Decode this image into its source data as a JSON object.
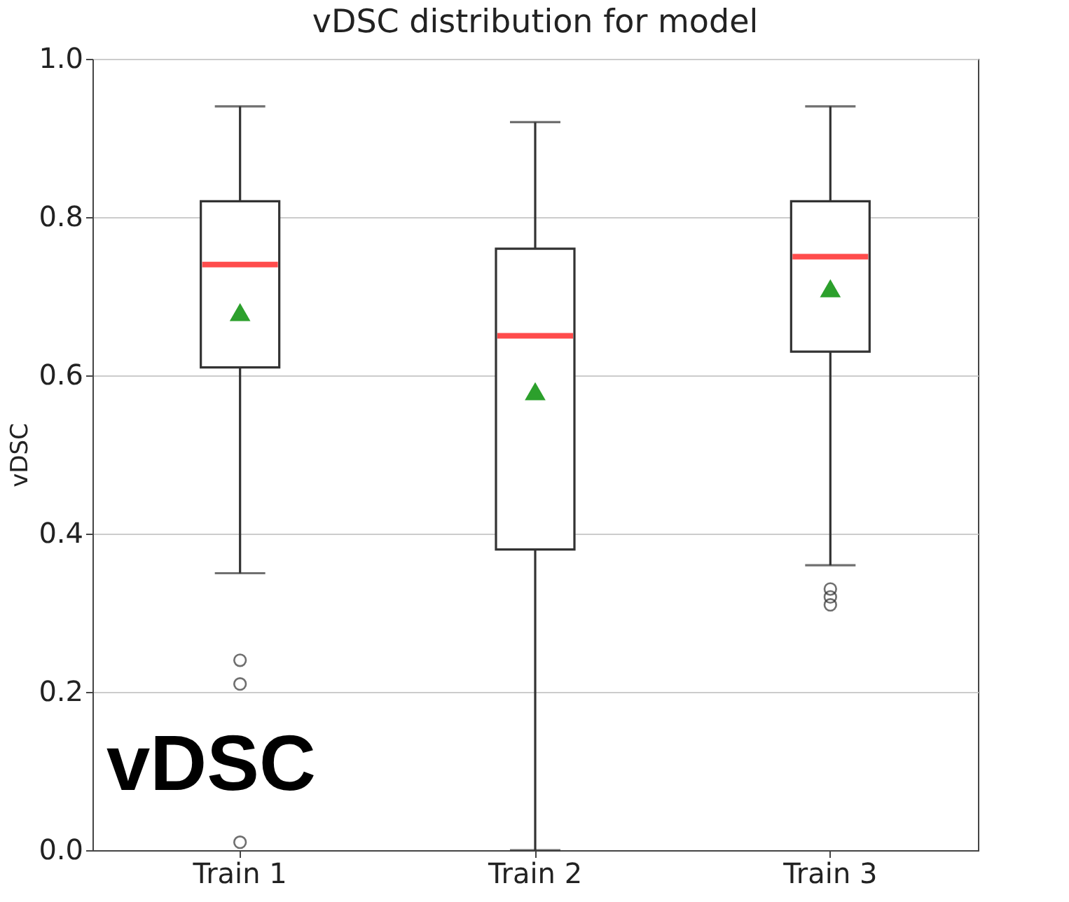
{
  "chart_data": {
    "type": "box",
    "title": "vDSC distribution for model",
    "ylabel": "vDSC",
    "categories": [
      "Train 1",
      "Train 2",
      "Train 3"
    ],
    "boxes": [
      {
        "low": 0.35,
        "q1": 0.61,
        "median": 0.74,
        "q3": 0.82,
        "high": 0.94,
        "mean": 0.68,
        "outliers": [
          0.24,
          0.21,
          0.01
        ]
      },
      {
        "low": 0.0,
        "q1": 0.38,
        "median": 0.65,
        "q3": 0.76,
        "high": 0.92,
        "mean": 0.58
      },
      {
        "low": 0.36,
        "q1": 0.63,
        "median": 0.75,
        "q3": 0.82,
        "high": 0.94,
        "mean": 0.71,
        "outliers": [
          0.33,
          0.32,
          0.31
        ]
      }
    ],
    "ylim": [
      0.0,
      1.0
    ],
    "yticks": [
      {
        "value": 0.0,
        "label": "0.0"
      },
      {
        "value": 0.2,
        "label": "0.2"
      },
      {
        "value": 0.4,
        "label": "0.4"
      },
      {
        "value": 0.6,
        "label": "0.6"
      },
      {
        "value": 0.8,
        "label": "0.8"
      },
      {
        "value": 1.0,
        "label": "1.0"
      }
    ],
    "grid": "y",
    "marker": "triangle",
    "annotations": [
      "vDSC"
    ]
  }
}
